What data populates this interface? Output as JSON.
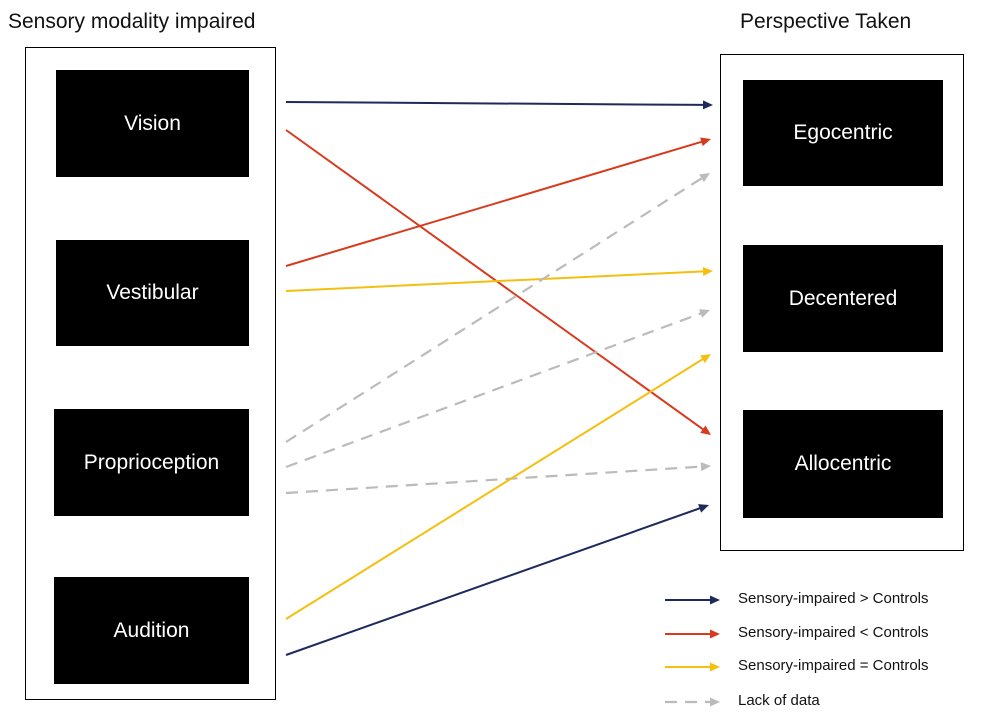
{
  "left_heading": "Sensory modality impaired",
  "right_heading": "Perspective Taken",
  "modalities": [
    "Vision",
    "Vestibular",
    "Proprioception",
    "Audition"
  ],
  "perspectives": [
    "Egocentric",
    "Decentered",
    "Allocentric"
  ],
  "colors": {
    "greater": "#1f2a5c",
    "less": "#d83a1e",
    "equal": "#f5bf0f",
    "no_data": "#bbbbbb"
  },
  "legend": [
    {
      "label": "Sensory-impaired > Controls",
      "relation": "greater"
    },
    {
      "label": "Sensory-impaired < Controls",
      "relation": "less"
    },
    {
      "label": "Sensory-impaired = Controls",
      "relation": "equal"
    },
    {
      "label": "Lack of data",
      "relation": "no_data"
    }
  ],
  "links": [
    {
      "from": "Vision",
      "to": "Egocentric",
      "relation": "greater"
    },
    {
      "from": "Vision",
      "to": "Allocentric",
      "relation": "less"
    },
    {
      "from": "Vestibular",
      "to": "Egocentric",
      "relation": "less"
    },
    {
      "from": "Vestibular",
      "to": "Decentered",
      "relation": "equal"
    },
    {
      "from": "Proprioception",
      "to": "Egocentric",
      "relation": "no_data"
    },
    {
      "from": "Proprioception",
      "to": "Decentered",
      "relation": "no_data"
    },
    {
      "from": "Proprioception",
      "to": "Allocentric",
      "relation": "no_data"
    },
    {
      "from": "Audition",
      "to": "Decentered",
      "relation": "equal"
    },
    {
      "from": "Audition",
      "to": "Allocentric",
      "relation": "greater"
    }
  ]
}
